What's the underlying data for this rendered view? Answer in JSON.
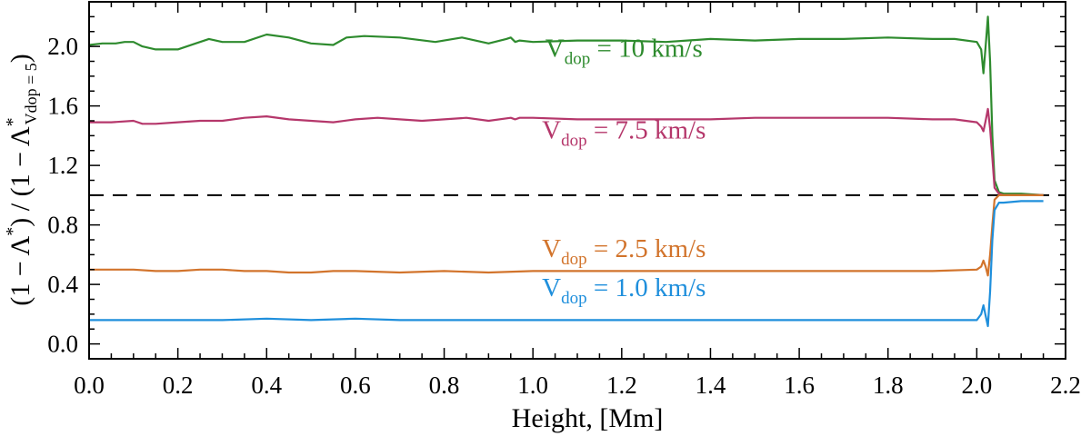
{
  "chart_data": {
    "type": "line",
    "xlabel": "Height, [Mm]",
    "ylabel": {
      "numerator": "(1 − Λ",
      "numerator_sup": "*",
      "numerator_close": ") / (1 − Λ",
      "denominator_sup": "*",
      "denominator_sub": "Vdop = 5",
      "denominator_close": ")"
    },
    "xlim": [
      0.0,
      2.2
    ],
    "ylim": [
      -0.1,
      2.3
    ],
    "x_ticks": [
      0.0,
      0.2,
      0.4,
      0.6,
      0.8,
      1.0,
      1.2,
      1.4,
      1.6,
      1.8,
      2.0,
      2.2
    ],
    "x_tick_labels": [
      "0.0",
      "0.2",
      "0.4",
      "0.6",
      "0.8",
      "1.0",
      "1.2",
      "1.4",
      "1.6",
      "1.8",
      "2.0",
      "2.2"
    ],
    "y_ticks": [
      0.0,
      0.4,
      0.8,
      1.2,
      1.6,
      2.0
    ],
    "y_tick_labels": [
      "0.0",
      "0.4",
      "0.8",
      "1.2",
      "1.6",
      "2.0"
    ],
    "reference_line": {
      "y": 1.0,
      "style": "dashed",
      "color": "#000000"
    },
    "grid": false,
    "series": [
      {
        "label_main": "V",
        "label_sub": "dop",
        "label_rest": " = 10  km/s",
        "color": "#2e8b2e",
        "label_at": [
          1.205,
          1.93
        ],
        "x": [
          0.0,
          0.03,
          0.06,
          0.08,
          0.1,
          0.12,
          0.15,
          0.2,
          0.24,
          0.27,
          0.3,
          0.35,
          0.4,
          0.45,
          0.5,
          0.55,
          0.58,
          0.62,
          0.7,
          0.78,
          0.84,
          0.9,
          0.94,
          0.95,
          0.96,
          0.97,
          1.0,
          1.1,
          1.2,
          1.3,
          1.4,
          1.5,
          1.6,
          1.7,
          1.8,
          1.9,
          1.95,
          2.0,
          2.01,
          2.015,
          2.02,
          2.025,
          2.03,
          2.035,
          2.04,
          2.05,
          2.06,
          2.1,
          2.15
        ],
        "y": [
          2.01,
          2.02,
          2.02,
          2.03,
          2.03,
          2.0,
          1.98,
          1.98,
          2.02,
          2.05,
          2.03,
          2.03,
          2.08,
          2.06,
          2.02,
          2.01,
          2.06,
          2.07,
          2.06,
          2.03,
          2.06,
          2.02,
          2.05,
          2.06,
          2.03,
          2.04,
          2.03,
          2.04,
          2.04,
          2.03,
          2.05,
          2.04,
          2.05,
          2.05,
          2.06,
          2.05,
          2.05,
          2.03,
          1.98,
          1.82,
          2.0,
          2.2,
          1.9,
          1.4,
          1.1,
          1.02,
          1.01,
          1.01,
          1.0
        ]
      },
      {
        "label_main": "V",
        "label_sub": "dop",
        "label_rest": " = 7.5 km/s",
        "color": "#b5376b",
        "label_at": [
          1.205,
          1.38
        ],
        "x": [
          0.0,
          0.05,
          0.1,
          0.12,
          0.15,
          0.2,
          0.25,
          0.3,
          0.35,
          0.4,
          0.45,
          0.5,
          0.55,
          0.6,
          0.65,
          0.7,
          0.75,
          0.8,
          0.85,
          0.9,
          0.95,
          0.96,
          0.97,
          1.0,
          1.1,
          1.2,
          1.3,
          1.4,
          1.5,
          1.6,
          1.7,
          1.8,
          1.9,
          1.95,
          2.0,
          2.01,
          2.015,
          2.02,
          2.025,
          2.03,
          2.035,
          2.04,
          2.05,
          2.06,
          2.1,
          2.15
        ],
        "y": [
          1.49,
          1.49,
          1.5,
          1.48,
          1.48,
          1.49,
          1.5,
          1.5,
          1.52,
          1.53,
          1.51,
          1.5,
          1.49,
          1.51,
          1.52,
          1.51,
          1.5,
          1.51,
          1.52,
          1.5,
          1.52,
          1.51,
          1.52,
          1.52,
          1.51,
          1.51,
          1.51,
          1.51,
          1.52,
          1.52,
          1.52,
          1.52,
          1.51,
          1.51,
          1.49,
          1.46,
          1.43,
          1.5,
          1.58,
          1.45,
          1.25,
          1.05,
          1.01,
          1.0,
          1.0,
          1.0
        ]
      },
      {
        "label_main": "V",
        "label_sub": "dop",
        "label_rest": " = 2.5 km/s",
        "color": "#d2742c",
        "label_at": [
          1.205,
          0.585
        ],
        "x": [
          0.0,
          0.05,
          0.1,
          0.15,
          0.2,
          0.25,
          0.3,
          0.35,
          0.4,
          0.45,
          0.5,
          0.55,
          0.6,
          0.7,
          0.8,
          0.9,
          1.0,
          1.2,
          1.4,
          1.6,
          1.8,
          1.9,
          2.0,
          2.01,
          2.015,
          2.02,
          2.025,
          2.03,
          2.035,
          2.04,
          2.05,
          2.1,
          2.15
        ],
        "y": [
          0.5,
          0.5,
          0.5,
          0.49,
          0.49,
          0.5,
          0.5,
          0.49,
          0.49,
          0.48,
          0.48,
          0.49,
          0.49,
          0.48,
          0.49,
          0.48,
          0.49,
          0.49,
          0.49,
          0.49,
          0.49,
          0.49,
          0.5,
          0.52,
          0.56,
          0.52,
          0.46,
          0.6,
          0.8,
          0.97,
          1.0,
          1.0,
          1.0
        ]
      },
      {
        "label_main": "V",
        "label_sub": "dop",
        "label_rest": " = 1.0 km/s",
        "color": "#1f8fdc",
        "label_at": [
          1.205,
          0.32
        ],
        "x": [
          0.0,
          0.05,
          0.1,
          0.2,
          0.3,
          0.4,
          0.5,
          0.6,
          0.7,
          0.8,
          0.9,
          1.0,
          1.2,
          1.4,
          1.6,
          1.8,
          1.9,
          1.98,
          2.0,
          2.01,
          2.015,
          2.02,
          2.025,
          2.03,
          2.035,
          2.04,
          2.05,
          2.06,
          2.1,
          2.15
        ],
        "y": [
          0.16,
          0.16,
          0.16,
          0.16,
          0.16,
          0.17,
          0.16,
          0.17,
          0.16,
          0.16,
          0.16,
          0.16,
          0.16,
          0.16,
          0.16,
          0.16,
          0.16,
          0.16,
          0.16,
          0.2,
          0.26,
          0.19,
          0.12,
          0.35,
          0.7,
          0.9,
          0.95,
          0.95,
          0.96,
          0.96
        ]
      }
    ]
  }
}
